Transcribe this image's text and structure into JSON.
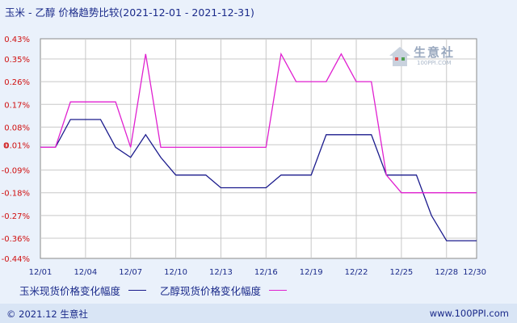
{
  "title": "玉米 - 乙醇 价格趋势比较(2021-12-01 - 2021-12-31)",
  "legend": {
    "series1": "玉米现货价格变化幅度",
    "series2": "乙醇现货价格变化幅度"
  },
  "footer": {
    "left_symbol": "©",
    "left_text": "2021.12 生意社",
    "right_text": "www.100PPI.com"
  },
  "watermark": {
    "text": "生意社",
    "sub": "100PPI.COM"
  },
  "colors": {
    "series1": "#1a1a8c",
    "series2": "#e020d0",
    "axis_label": "#d01010",
    "tick_label": "#1a2a8a"
  },
  "chart_data": {
    "type": "line",
    "title": "玉米 - 乙醇 价格趋势比较(2021-12-01 - 2021-12-31)",
    "ylim": [
      -0.44,
      0.43
    ],
    "y_ticks": [
      "0.43%",
      "0.35%",
      "0.26%",
      "0.17%",
      "0.08%",
      "0.01%",
      "-0.09%",
      "-0.18%",
      "-0.27%",
      "-0.36%",
      "-0.44%"
    ],
    "y_tick_values": [
      0.43,
      0.35,
      0.26,
      0.17,
      0.08,
      0.01,
      -0.09,
      -0.18,
      -0.27,
      -0.36,
      -0.44
    ],
    "zero_marker": "0",
    "x_ticks": [
      "12/01",
      "12/04",
      "12/07",
      "12/10",
      "12/13",
      "12/16",
      "12/19",
      "12/22",
      "12/25",
      "12/28",
      "12/30"
    ],
    "x_tick_days": [
      1,
      4,
      7,
      10,
      13,
      16,
      19,
      22,
      25,
      28,
      30
    ],
    "x_range": [
      1,
      30
    ],
    "grid": true,
    "legend_position": "bottom",
    "series": [
      {
        "name": "玉米现货价格变化幅度",
        "points": [
          [
            1,
            0
          ],
          [
            2,
            0
          ],
          [
            3,
            0.11
          ],
          [
            4,
            0.11
          ],
          [
            5,
            0.11
          ],
          [
            6,
            0
          ],
          [
            7,
            -0.04
          ],
          [
            8,
            0.05
          ],
          [
            9,
            -0.04
          ],
          [
            10,
            -0.11
          ],
          [
            11,
            -0.11
          ],
          [
            12,
            -0.11
          ],
          [
            13,
            -0.16
          ],
          [
            14,
            -0.16
          ],
          [
            15,
            -0.16
          ],
          [
            16,
            -0.16
          ],
          [
            17,
            -0.11
          ],
          [
            18,
            -0.11
          ],
          [
            19,
            -0.11
          ],
          [
            20,
            0.05
          ],
          [
            21,
            0.05
          ],
          [
            22,
            0.05
          ],
          [
            23,
            0.05
          ],
          [
            24,
            -0.11
          ],
          [
            25,
            -0.11
          ],
          [
            26,
            -0.11
          ],
          [
            27,
            -0.27
          ],
          [
            28,
            -0.37
          ],
          [
            29,
            -0.37
          ],
          [
            30,
            -0.37
          ]
        ]
      },
      {
        "name": "乙醇现货价格变化幅度",
        "points": [
          [
            1,
            0
          ],
          [
            2,
            0
          ],
          [
            3,
            0.18
          ],
          [
            4,
            0.18
          ],
          [
            5,
            0.18
          ],
          [
            6,
            0.18
          ],
          [
            7,
            0
          ],
          [
            8,
            0.37
          ],
          [
            9,
            0
          ],
          [
            10,
            0
          ],
          [
            11,
            0
          ],
          [
            12,
            0
          ],
          [
            13,
            0
          ],
          [
            14,
            0
          ],
          [
            15,
            0
          ],
          [
            16,
            0
          ],
          [
            17,
            0.37
          ],
          [
            18,
            0.26
          ],
          [
            19,
            0.26
          ],
          [
            20,
            0.26
          ],
          [
            21,
            0.37
          ],
          [
            22,
            0.26
          ],
          [
            23,
            0.26
          ],
          [
            24,
            -0.11
          ],
          [
            25,
            -0.18
          ],
          [
            26,
            -0.18
          ],
          [
            27,
            -0.18
          ],
          [
            28,
            -0.18
          ],
          [
            29,
            -0.18
          ],
          [
            30,
            -0.18
          ]
        ]
      }
    ]
  }
}
